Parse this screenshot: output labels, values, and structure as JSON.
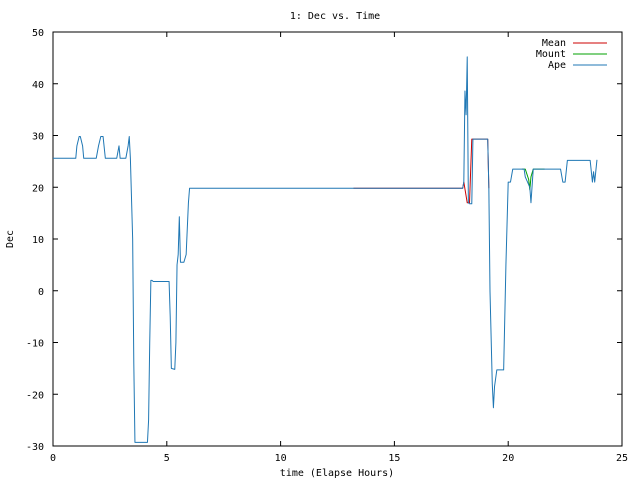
{
  "chart_data": {
    "type": "line",
    "title": "1: Dec vs. Time",
    "xlabel": "time (Elapse Hours)",
    "ylabel": "Dec",
    "xlim": [
      0,
      25
    ],
    "ylim": [
      -30,
      50
    ],
    "xticks": [
      0,
      5,
      10,
      15,
      20,
      25
    ],
    "yticks": [
      -30,
      -20,
      -10,
      0,
      10,
      20,
      30,
      40,
      50
    ],
    "legend_position": "top-right",
    "grid": false,
    "series": [
      {
        "name": "Mean",
        "color": "#cc0000",
        "x": [
          13.2,
          18.0,
          18.05,
          18.2,
          18.3,
          18.4,
          18.6,
          18.8,
          19.1,
          19.15
        ],
        "y": [
          19.8,
          19.8,
          21.0,
          17.0,
          17.0,
          29.3,
          29.3,
          29.3,
          29.3,
          19.8
        ]
      },
      {
        "name": "Mount",
        "color": "#00a000",
        "x": [
          20.6,
          20.75,
          20.9,
          20.95,
          21.0,
          21.1,
          21.3,
          21.6
        ],
        "y": [
          23.5,
          23.5,
          21.5,
          19.5,
          22.0,
          23.5,
          23.5,
          23.5
        ]
      },
      {
        "name": "Ape",
        "color": "#1f77b4",
        "x": [
          0.0,
          1.0,
          1.05,
          1.15,
          1.2,
          1.3,
          1.35,
          1.9,
          2.0,
          2.1,
          2.2,
          2.3,
          2.8,
          2.9,
          2.95,
          3.2,
          3.3,
          3.35,
          3.4,
          3.5,
          3.55,
          3.6,
          3.65,
          3.8,
          4.0,
          4.15,
          4.2,
          4.25,
          4.3,
          4.35,
          4.4,
          5.0,
          5.1,
          5.15,
          5.2,
          5.35,
          5.4,
          5.45,
          5.5,
          5.55,
          5.6,
          5.65,
          5.75,
          5.85,
          5.9,
          5.95,
          6.0,
          6.05,
          13.2,
          18.0,
          18.05,
          18.1,
          18.15,
          18.2,
          18.25,
          18.3,
          18.4,
          18.45,
          18.6,
          18.8,
          19.0,
          19.1,
          19.15,
          19.2,
          19.3,
          19.35,
          19.4,
          19.5,
          19.8,
          19.9,
          20.0,
          20.1,
          20.2,
          20.3,
          20.6,
          20.7,
          20.75,
          20.85,
          20.95,
          21.0,
          21.1,
          21.2,
          21.5,
          22.0,
          22.2,
          22.3,
          22.4,
          22.5,
          22.6,
          22.7,
          23.0,
          23.3,
          23.5,
          23.6,
          23.7,
          23.75,
          23.8,
          23.9
        ],
        "y": [
          25.6,
          25.6,
          28.0,
          29.8,
          29.8,
          28.0,
          25.6,
          25.6,
          28.0,
          29.8,
          29.8,
          25.6,
          25.6,
          28.0,
          25.6,
          25.6,
          28.0,
          29.8,
          25.6,
          10.0,
          -14.0,
          -29.3,
          -29.3,
          -29.3,
          -29.3,
          -29.3,
          -25.0,
          -10.0,
          2.0,
          2.0,
          1.8,
          1.8,
          1.8,
          -5.0,
          -15.0,
          -15.2,
          -10.0,
          5.0,
          7.0,
          14.3,
          5.5,
          5.5,
          5.5,
          7.0,
          12.0,
          17.0,
          19.8,
          19.8,
          19.8,
          19.8,
          21.0,
          38.6,
          34.0,
          45.2,
          17.0,
          16.8,
          16.8,
          29.3,
          29.3,
          29.3,
          29.3,
          29.3,
          19.8,
          0.0,
          -18.0,
          -22.6,
          -18.5,
          -15.3,
          -15.3,
          5.0,
          21.0,
          21.0,
          23.5,
          23.5,
          23.5,
          23.5,
          22.0,
          21.0,
          20.0,
          17.0,
          23.5,
          23.5,
          23.5,
          23.5,
          23.5,
          23.5,
          21.0,
          21.0,
          25.2,
          25.2,
          25.2,
          25.2,
          25.2,
          25.2,
          21.0,
          23.0,
          21.0,
          25.3
        ]
      }
    ]
  }
}
